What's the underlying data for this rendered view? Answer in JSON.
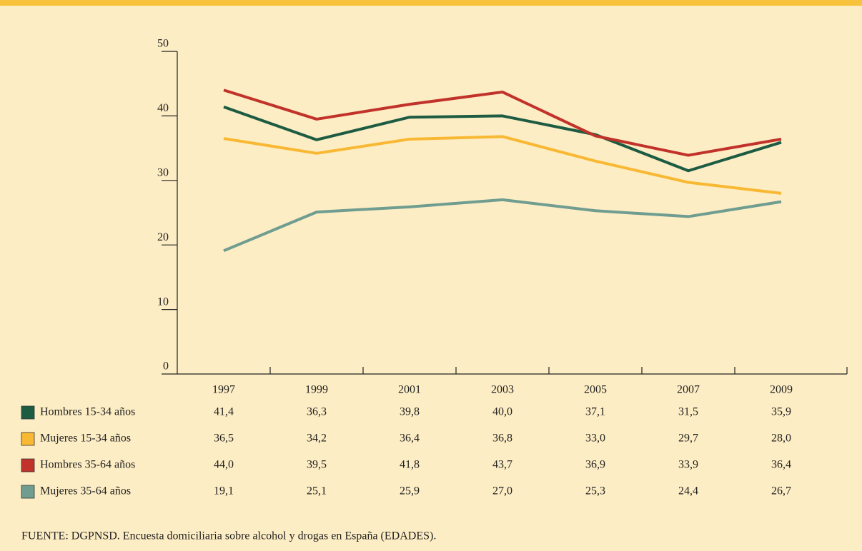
{
  "chart_data": {
    "type": "line",
    "categories": [
      "1997",
      "1999",
      "2001",
      "2003",
      "2005",
      "2007",
      "2009"
    ],
    "series": [
      {
        "name": "Hombres 15-34 años",
        "color": "#1d5c43",
        "values": [
          41.4,
          36.3,
          39.8,
          40.0,
          37.1,
          31.5,
          35.9
        ],
        "value_labels": [
          "41,4",
          "36,3",
          "39,8",
          "40,0",
          "37,1",
          "31,5",
          "35,9"
        ]
      },
      {
        "name": "Mujeres 15-34 años",
        "color": "#f8b833",
        "values": [
          36.5,
          34.2,
          36.4,
          36.8,
          33.0,
          29.7,
          28.0
        ],
        "value_labels": [
          "36,5",
          "34,2",
          "36,4",
          "36,8",
          "33,0",
          "29,7",
          "28,0"
        ]
      },
      {
        "name": "Hombres 35-64 años",
        "color": "#c1322a",
        "values": [
          44.0,
          39.5,
          41.8,
          43.7,
          36.9,
          33.9,
          36.4
        ],
        "value_labels": [
          "44,0",
          "39,5",
          "41,8",
          "43,7",
          "36,9",
          "33,9",
          "36,4"
        ]
      },
      {
        "name": "Mujeres 35-64 años",
        "color": "#6f9d90",
        "values": [
          19.1,
          25.1,
          25.9,
          27.0,
          25.3,
          24.4,
          26.7
        ],
        "value_labels": [
          "19,1",
          "25,1",
          "25,9",
          "27,0",
          "25,3",
          "24,4",
          "26,7"
        ]
      }
    ],
    "ylim": [
      0,
      50
    ],
    "yticks": [
      0,
      10,
      20,
      30,
      40,
      50
    ],
    "source": "FUENTE: DGPNSD. Encuesta domiciliaria sobre alcohol y drogas en España (EDADES)."
  }
}
